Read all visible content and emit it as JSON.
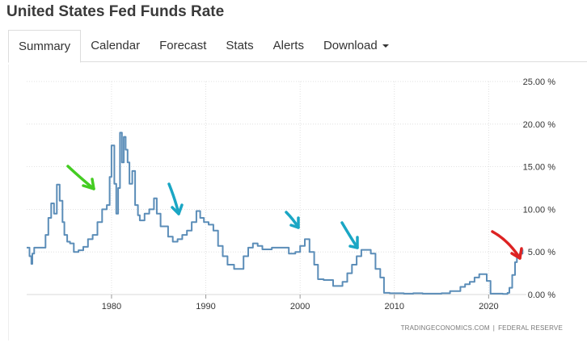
{
  "page": {
    "title": "United States Fed Funds Rate"
  },
  "tabs": [
    {
      "label": "Summary",
      "active": true
    },
    {
      "label": "Calendar"
    },
    {
      "label": "Forecast"
    },
    {
      "label": "Stats"
    },
    {
      "label": "Alerts"
    },
    {
      "label": "Download",
      "has_dropdown": true
    }
  ],
  "credit": {
    "source": "TRADINGECONOMICS.COM",
    "separator": "|",
    "publisher": "FEDERAL RESERVE"
  },
  "colors": {
    "line": "#5b8db8",
    "grid": "#d9d9d9",
    "arrow_green": "#44cc22",
    "arrow_teal": "#1aa6c4",
    "arrow_red": "#dd2222"
  },
  "chart_data": {
    "type": "line",
    "title": "",
    "xlabel": "",
    "ylabel": "",
    "xlim": [
      1971,
      2024
    ],
    "ylim": [
      0,
      25
    ],
    "x_ticks": [
      "1980",
      "1990",
      "2000",
      "2010",
      "2020"
    ],
    "y_ticks": [
      "0.00 %",
      "5.00 %",
      "10.00 %",
      "15.00 %",
      "20.00 %",
      "25.00 %"
    ],
    "y_tick_values": [
      0,
      5,
      10,
      15,
      20,
      25
    ],
    "grid": true,
    "y_axis_side": "right",
    "series": [
      {
        "x": [
          1971.0,
          1971.3,
          1971.5,
          1971.6,
          1971.8,
          1972.0,
          1972.5,
          1973.0,
          1973.3,
          1973.6,
          1973.9,
          1974.2,
          1974.5,
          1974.8,
          1975.0,
          1975.3,
          1975.6,
          1976.0,
          1976.5,
          1977.0,
          1977.5,
          1978.0,
          1978.5,
          1979.0,
          1979.5,
          1979.8,
          1980.0,
          1980.3,
          1980.5,
          1980.7,
          1980.9,
          1981.1,
          1981.3,
          1981.5,
          1981.7,
          1981.9,
          1982.2,
          1982.5,
          1982.8,
          1983.0,
          1983.5,
          1984.0,
          1984.5,
          1984.8,
          1985.2,
          1985.6,
          1986.0,
          1986.5,
          1987.0,
          1987.5,
          1988.0,
          1988.5,
          1989.0,
          1989.4,
          1989.8,
          1990.3,
          1990.8,
          1991.3,
          1991.8,
          1992.3,
          1993.0,
          1994.0,
          1994.5,
          1995.0,
          1995.5,
          1996.0,
          1997.0,
          1998.0,
          1998.8,
          1999.5,
          2000.0,
          2000.5,
          2001.0,
          2001.5,
          2001.9,
          2002.5,
          2003.5,
          2004.0,
          2004.5,
          2005.0,
          2005.5,
          2006.0,
          2006.5,
          2007.0,
          2007.5,
          2008.0,
          2008.5,
          2008.9,
          2009.5,
          2010.0,
          2011.0,
          2012.0,
          2013.0,
          2014.0,
          2015.0,
          2015.9,
          2016.5,
          2017.0,
          2017.5,
          2018.0,
          2018.5,
          2019.0,
          2019.4,
          2019.8,
          2020.2,
          2021.0,
          2021.5,
          2022.0,
          2022.2,
          2022.5,
          2022.8,
          2023.0,
          2023.3,
          2023.6
        ],
        "values": [
          5.5,
          4.5,
          3.6,
          4.8,
          5.5,
          5.5,
          5.5,
          7.0,
          9.0,
          10.7,
          9.5,
          12.9,
          11.0,
          8.5,
          7.0,
          6.2,
          6.0,
          5.0,
          5.2,
          5.6,
          6.5,
          7.0,
          8.5,
          10.0,
          10.5,
          13.8,
          17.5,
          13.0,
          9.5,
          12.5,
          19.0,
          15.5,
          18.5,
          17.0,
          15.5,
          13.0,
          14.5,
          10.5,
          9.3,
          8.7,
          9.5,
          10.0,
          11.3,
          9.5,
          8.0,
          8.0,
          6.8,
          6.2,
          6.5,
          7.0,
          7.5,
          8.5,
          9.8,
          9.0,
          8.5,
          8.2,
          7.5,
          5.7,
          4.5,
          3.5,
          3.0,
          4.5,
          5.5,
          6.0,
          5.7,
          5.3,
          5.5,
          5.5,
          4.8,
          5.0,
          5.7,
          6.5,
          5.0,
          3.5,
          1.8,
          1.7,
          1.0,
          1.0,
          1.5,
          2.5,
          3.5,
          4.5,
          5.25,
          5.25,
          4.8,
          3.0,
          2.0,
          0.2,
          0.15,
          0.15,
          0.1,
          0.15,
          0.1,
          0.1,
          0.15,
          0.4,
          0.4,
          0.9,
          1.2,
          1.5,
          2.0,
          2.4,
          2.4,
          1.6,
          0.1,
          0.1,
          0.08,
          0.2,
          0.8,
          2.3,
          3.8,
          4.3,
          4.8,
          5.3
        ]
      }
    ],
    "annotations": [
      {
        "type": "arrow",
        "color": "green"
      },
      {
        "type": "arrow",
        "color": "teal"
      },
      {
        "type": "arrow",
        "color": "teal"
      },
      {
        "type": "arrow",
        "color": "teal"
      },
      {
        "type": "arrow",
        "color": "red"
      }
    ]
  }
}
